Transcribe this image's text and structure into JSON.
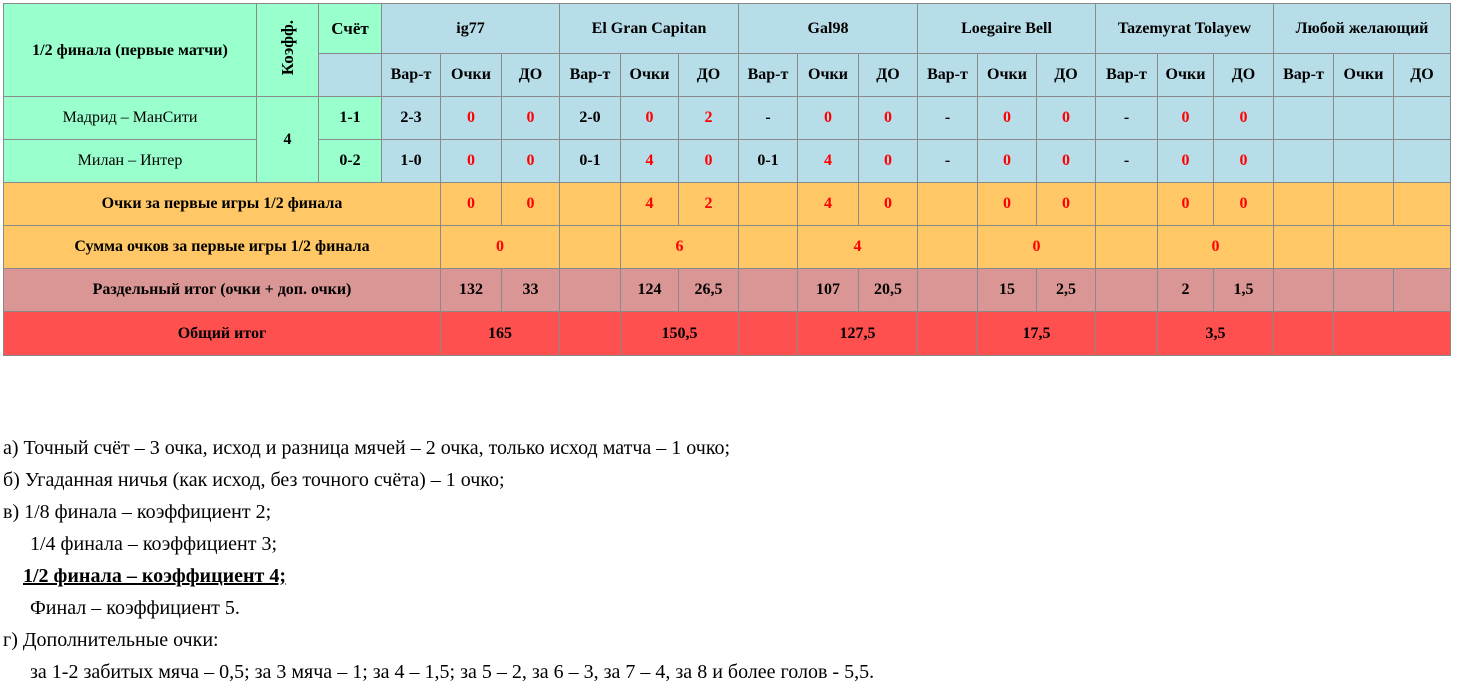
{
  "header": {
    "title": "1/2 финала (первые матчи)",
    "koef_label": "Коэфф.",
    "score_label": "Счёт",
    "koef_value": "4"
  },
  "participants": [
    {
      "name": "ig77"
    },
    {
      "name": "El Gran Capitan"
    },
    {
      "name": "Gal98"
    },
    {
      "name": "Loegaire Bell"
    },
    {
      "name": "Tazemyrat Tolayew"
    },
    {
      "name": "Любой желающий"
    }
  ],
  "subheaders": {
    "variant": "Вар-т",
    "points": "Очки",
    "extra": "ДО"
  },
  "matches": [
    {
      "name": "Мадрид – МанСити",
      "score": "1-1",
      "cells": [
        [
          "2-3",
          "0",
          "0"
        ],
        [
          "2-0",
          "0",
          "2"
        ],
        [
          "-",
          "0",
          "0"
        ],
        [
          "-",
          "0",
          "0"
        ],
        [
          "-",
          "0",
          "0"
        ],
        [
          "",
          "",
          ""
        ]
      ]
    },
    {
      "name": "Милан – Интер",
      "score": "0-2",
      "cells": [
        [
          "1-0",
          "0",
          "0"
        ],
        [
          "0-1",
          "4",
          "0"
        ],
        [
          "0-1",
          "4",
          "0"
        ],
        [
          "-",
          "0",
          "0"
        ],
        [
          "-",
          "0",
          "0"
        ],
        [
          "",
          "",
          ""
        ]
      ]
    }
  ],
  "rows": {
    "first_games": {
      "label": "Очки за первые игры 1/2 финала",
      "values": [
        [
          "0",
          "0"
        ],
        [
          "4",
          "2"
        ],
        [
          "4",
          "0"
        ],
        [
          "0",
          "0"
        ],
        [
          "0",
          "0"
        ],
        [
          "",
          ""
        ]
      ]
    },
    "sum_first": {
      "label": "Сумма очков за первые игры 1/2 финала",
      "values": [
        "0",
        "6",
        "4",
        "0",
        "0",
        ""
      ]
    },
    "separate": {
      "label": "Раздельный итог (очки + доп. очки)",
      "values": [
        [
          "132",
          "33"
        ],
        [
          "124",
          "26,5"
        ],
        [
          "107",
          "20,5"
        ],
        [
          "15",
          "2,5"
        ],
        [
          "2",
          "1,5"
        ],
        [
          "",
          ""
        ]
      ]
    },
    "total": {
      "label": "Общий итог",
      "values": [
        "165",
        "150,5",
        "127,5",
        "17,5",
        "3,5",
        ""
      ]
    }
  },
  "notes": [
    "а) Точный счёт – 3 очка, исход и разница мячей – 2 очка, только исход матча – 1 очко;",
    "б) Угаданная ничья (как исход, без точного счёта) – 1 очко;",
    "в) 1/8 финала – коэффициент 2;",
    "1/4 финала – коэффициент 3;",
    "1/2 финала – коэффициент 4;",
    "Финал – коэффициент 5.",
    "г) Дополнительные очки:",
    "за 1-2 забитых мяча – 0,5; за 3 мяча – 1; за 4 – 1,5; за 5 – 2, за 6 – 3, за 7 – 4, за 8 и более голов - 5,5."
  ],
  "colors": {
    "header_green": "#99ffcc",
    "light_blue": "#b7dde8",
    "orange": "#ffc766",
    "pink": "#d99694",
    "red_row": "#ff5050",
    "red_text": "#ff0000"
  }
}
